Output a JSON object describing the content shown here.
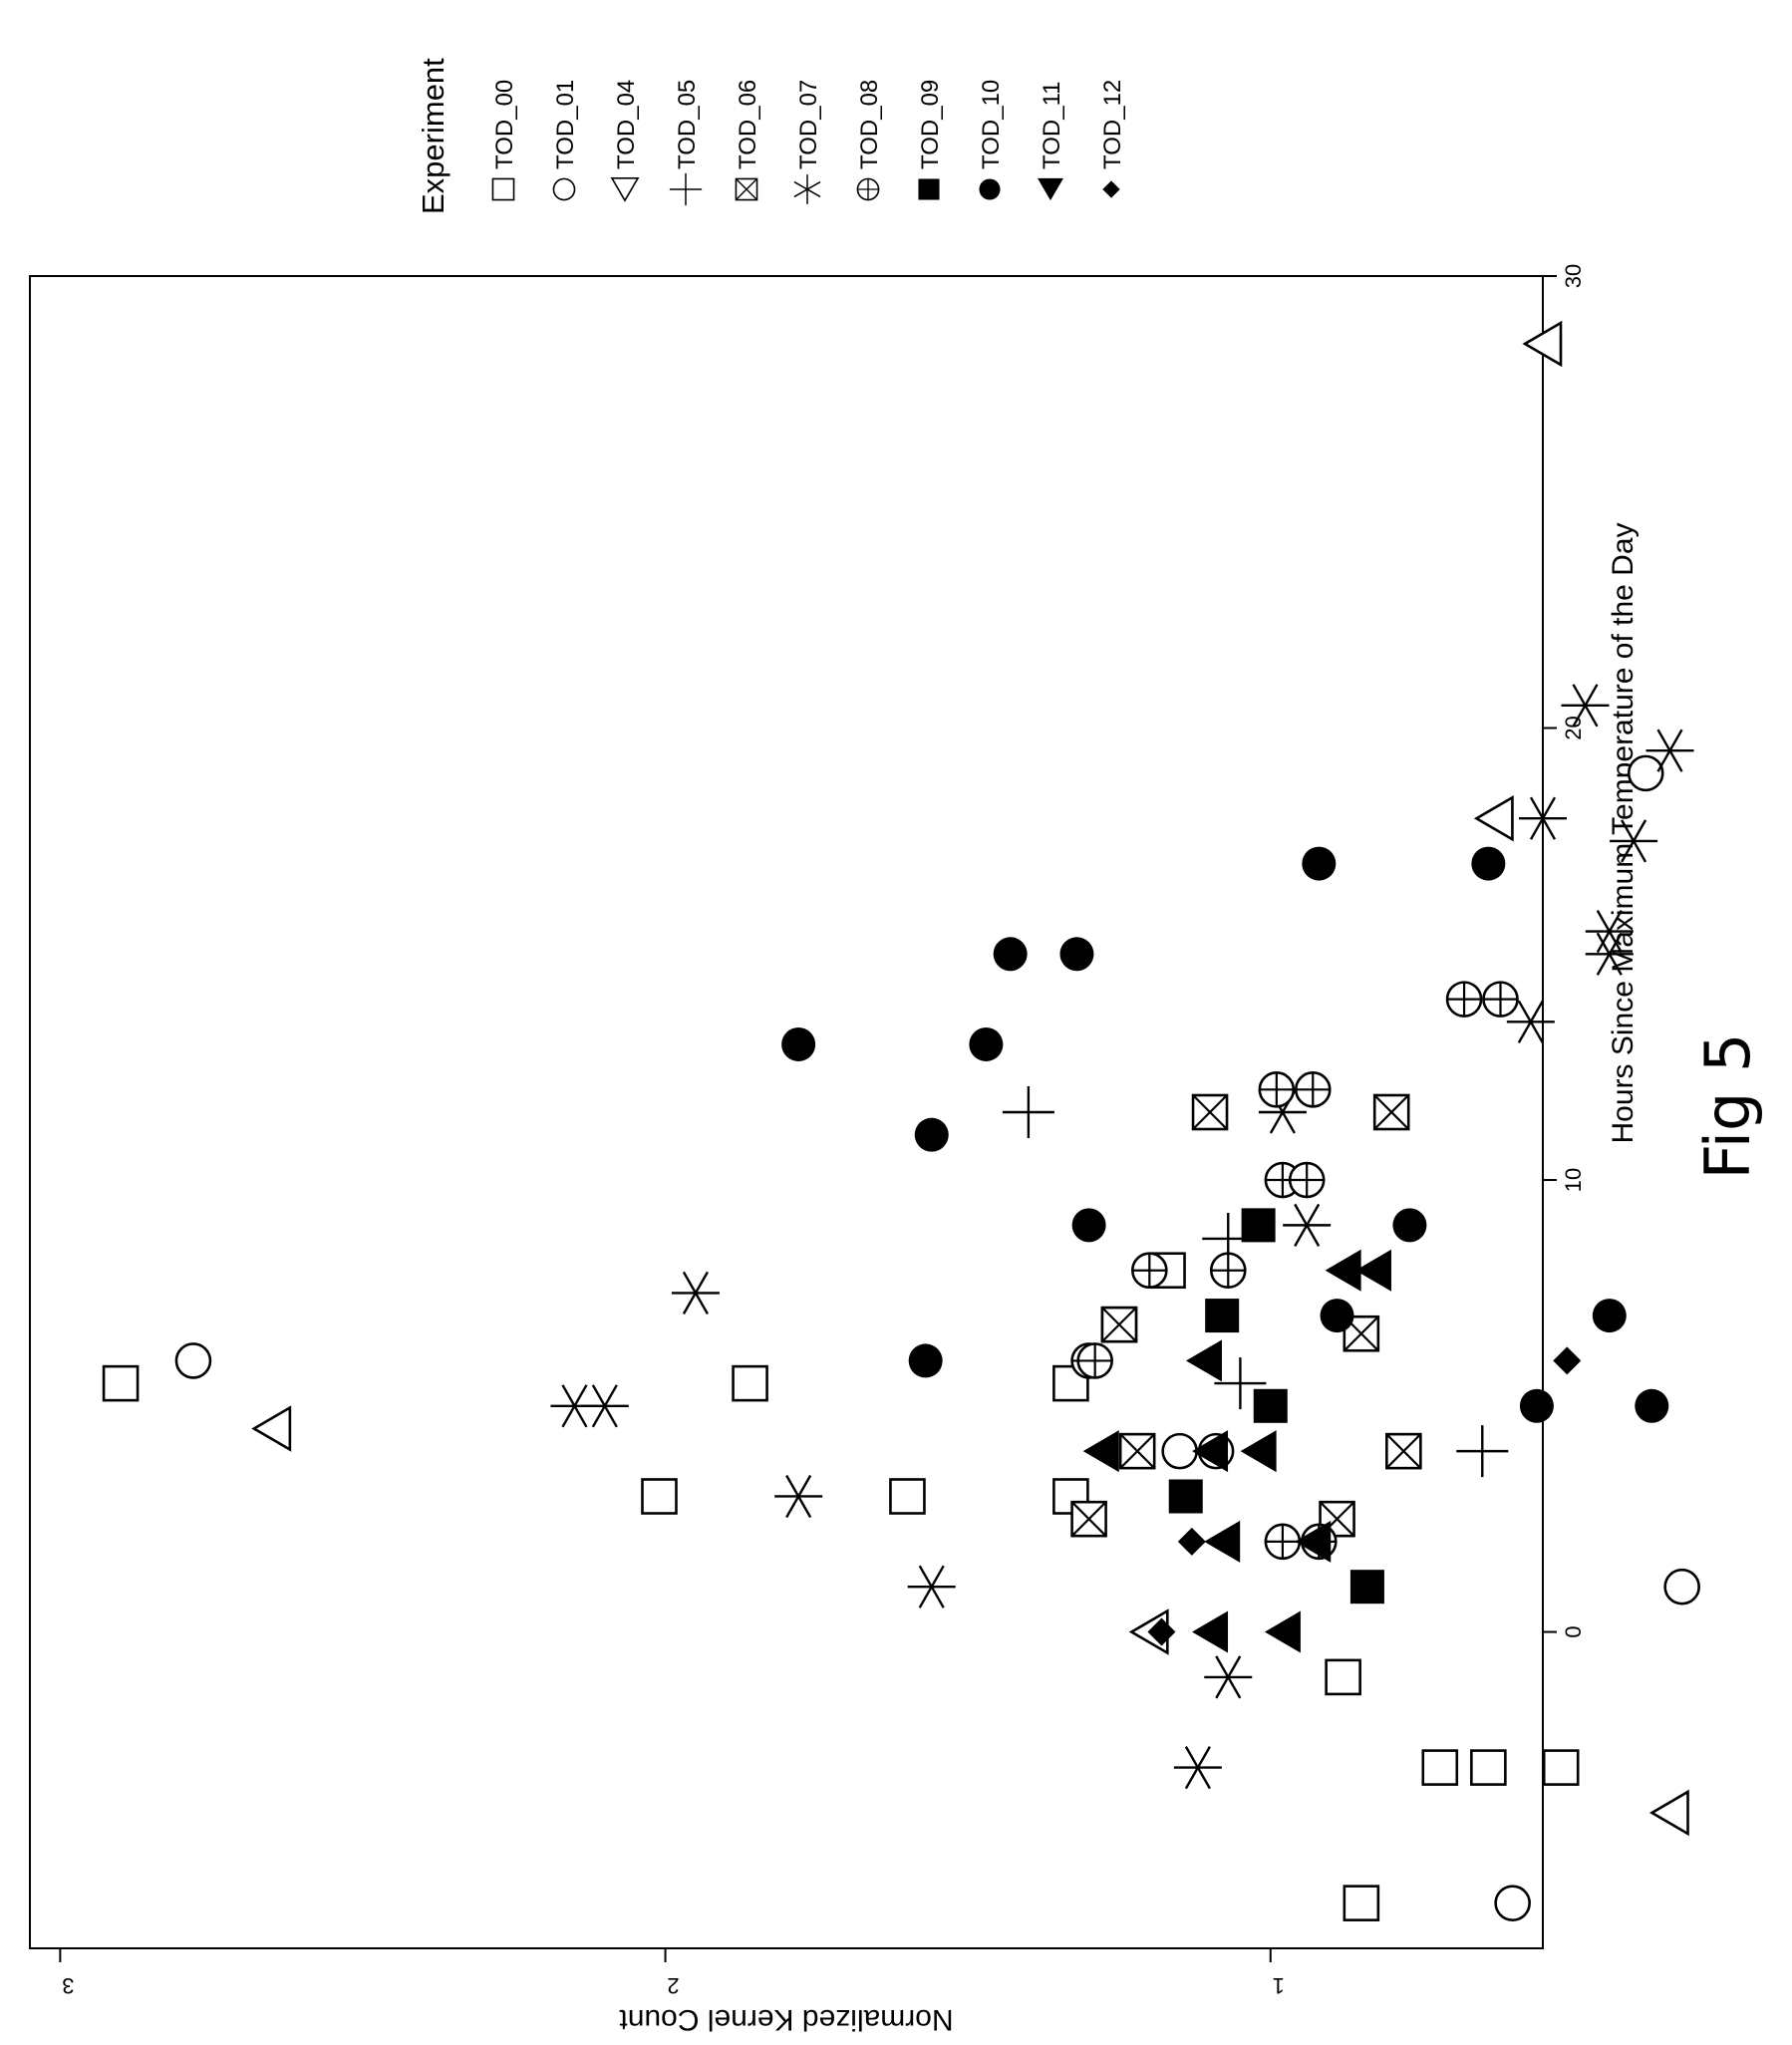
{
  "chart_data": {
    "type": "scatter",
    "orientation": "rotated-90-clockwise",
    "xlabel": "Hours Since Maximum Temperature of the Day",
    "ylabel": "Normalized Kernel Count",
    "xlim": [
      -7,
      30
    ],
    "ylim": [
      0.55,
      3.05
    ],
    "xticks": [
      "0",
      "10",
      "20",
      "30"
    ],
    "xtick_values": [
      0,
      10,
      20,
      30
    ],
    "yticks": [
      "1",
      "2",
      "3"
    ],
    "ytick_values": [
      1,
      2,
      3
    ],
    "grid": false,
    "legend": {
      "title": "Experiment",
      "placement": "top-right (rotated)"
    },
    "caption": "Fig 5",
    "series": [
      {
        "name": "TOD_00",
        "marker": "open-square",
        "points": [
          [
            5.5,
            2.9
          ],
          [
            5.5,
            1.86
          ],
          [
            3,
            2.01
          ],
          [
            3,
            1.6
          ],
          [
            3,
            1.33
          ],
          [
            5.5,
            1.33
          ],
          [
            -1,
            0.88
          ],
          [
            -3,
            0.72
          ],
          [
            -3,
            0.64
          ],
          [
            -3,
            0.52
          ],
          [
            -6,
            0.85
          ],
          [
            8,
            1.17
          ],
          [
            6.8,
            1.25
          ]
        ]
      },
      {
        "name": "TOD_01",
        "marker": "open-circle",
        "points": [
          [
            6,
            2.78
          ],
          [
            1,
            0.32
          ],
          [
            -6,
            0.6
          ],
          [
            19,
            0.38
          ],
          [
            4,
            1.15
          ],
          [
            4,
            1.09
          ]
        ]
      },
      {
        "name": "TOD_04",
        "marker": "open-triangle",
        "points": [
          [
            4.5,
            2.65
          ],
          [
            0,
            1.2
          ],
          [
            -4,
            0.34
          ],
          [
            18,
            0.63
          ],
          [
            28.5,
            0.55
          ]
        ]
      },
      {
        "name": "TOD_05",
        "marker": "plus",
        "points": [
          [
            11.5,
            1.4
          ],
          [
            8.7,
            1.07
          ],
          [
            5.5,
            1.05
          ],
          [
            4,
            0.65
          ]
        ]
      },
      {
        "name": "TOD_06",
        "marker": "boxed-x",
        "points": [
          [
            11.5,
            1.1
          ],
          [
            11.5,
            0.8
          ],
          [
            6.6,
            0.85
          ],
          [
            6.8,
            1.25
          ],
          [
            4,
            1.22
          ],
          [
            4,
            0.78
          ],
          [
            2.5,
            1.3
          ],
          [
            2.5,
            0.89
          ]
        ]
      },
      {
        "name": "TOD_07",
        "marker": "asterisk",
        "points": [
          [
            7.5,
            1.95
          ],
          [
            5,
            2.15
          ],
          [
            5,
            2.1
          ],
          [
            3,
            1.78
          ],
          [
            1,
            1.56
          ],
          [
            -1,
            1.07
          ],
          [
            -3,
            1.12
          ],
          [
            11.5,
            0.98
          ],
          [
            9,
            0.94
          ],
          [
            13.5,
            0.57
          ],
          [
            15,
            0.44
          ],
          [
            15.5,
            0.44
          ],
          [
            17.5,
            0.4
          ],
          [
            18,
            0.55
          ],
          [
            19.5,
            0.34
          ],
          [
            20.5,
            0.48
          ]
        ]
      },
      {
        "name": "TOD_08",
        "marker": "circled-plus",
        "points": [
          [
            12,
            0.99
          ],
          [
            12,
            0.93
          ],
          [
            10,
            0.98
          ],
          [
            10,
            0.94
          ],
          [
            8,
            1.07
          ],
          [
            8,
            1.2
          ],
          [
            6,
            1.3
          ],
          [
            6,
            1.29
          ],
          [
            14,
            0.68
          ],
          [
            14,
            0.62
          ],
          [
            2,
            0.98
          ],
          [
            2,
            0.92
          ]
        ]
      },
      {
        "name": "TOD_09",
        "marker": "filled-square",
        "points": [
          [
            9,
            1.02
          ],
          [
            7,
            1.08
          ],
          [
            5,
            1.0
          ],
          [
            3,
            1.14
          ],
          [
            1,
            0.84
          ]
        ]
      },
      {
        "name": "TOD_10",
        "marker": "filled-circle",
        "points": [
          [
            17,
            0.92
          ],
          [
            17,
            0.64
          ],
          [
            15,
            1.43
          ],
          [
            15,
            1.32
          ],
          [
            13,
            1.78
          ],
          [
            13,
            1.47
          ],
          [
            11,
            1.56
          ],
          [
            9,
            1.3
          ],
          [
            9,
            0.77
          ],
          [
            7,
            0.89
          ],
          [
            7,
            0.44
          ],
          [
            5,
            0.56
          ],
          [
            5,
            0.37
          ],
          [
            6,
            1.57
          ]
        ]
      },
      {
        "name": "TOD_11",
        "marker": "filled-triangle",
        "points": [
          [
            0,
            1.1
          ],
          [
            0,
            0.98
          ],
          [
            2,
            1.08
          ],
          [
            2,
            0.93
          ],
          [
            4,
            1.1
          ],
          [
            4,
            1.02
          ],
          [
            6,
            1.11
          ],
          [
            8,
            0.88
          ],
          [
            8,
            0.83
          ],
          [
            4,
            1.28
          ]
        ]
      },
      {
        "name": "TOD_12",
        "marker": "filled-diamond",
        "points": [
          [
            0,
            1.18
          ],
          [
            2,
            1.13
          ],
          [
            6,
            0.51
          ]
        ]
      }
    ]
  },
  "colors": {
    "ink": "#000000",
    "background": "#ffffff"
  }
}
